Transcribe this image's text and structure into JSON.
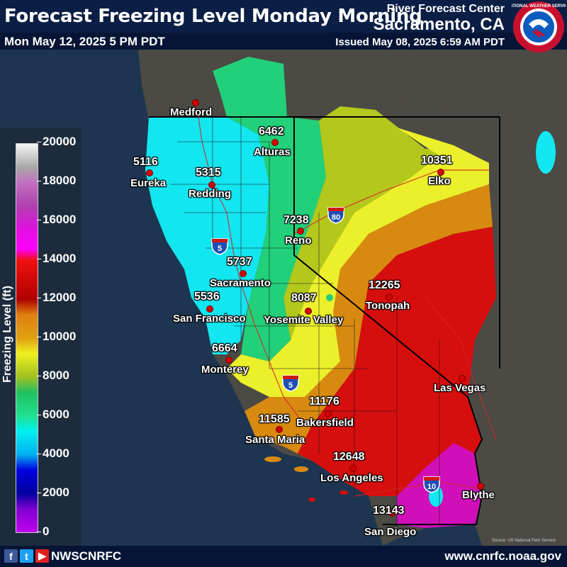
{
  "header": {
    "title": "Forecast Freezing Level Monday Morning",
    "valid_time": "Mon May 12, 2025 5 PM PDT",
    "agency_line": "River Forecast Center",
    "office": "Sacramento, CA",
    "issued": "Issued May 08, 2025 6:59 AM PDT",
    "logo_text": "NATIONAL WEATHER SERVICE"
  },
  "legend": {
    "title": "Freezing Level (ft)",
    "ticks": [
      "20000",
      "18000",
      "16000",
      "14000",
      "12000",
      "10000",
      "8000",
      "6000",
      "4000",
      "2000",
      "0"
    ]
  },
  "cities": [
    {
      "name": "Medford",
      "value": ""
    },
    {
      "name": "Alturas",
      "value": "6462"
    },
    {
      "name": "Eureka",
      "value": "5116"
    },
    {
      "name": "Redding",
      "value": "5315"
    },
    {
      "name": "Elko",
      "value": "10351"
    },
    {
      "name": "Reno",
      "value": "7238"
    },
    {
      "name": "Sacramento",
      "value": "5737"
    },
    {
      "name": "San Francisco",
      "value": "5536"
    },
    {
      "name": "Yosemite Valley",
      "value": "8087"
    },
    {
      "name": "Tonopah",
      "value": "12265"
    },
    {
      "name": "Monterey",
      "value": "6664"
    },
    {
      "name": "Las Vegas",
      "value": ""
    },
    {
      "name": "Bakersfield",
      "value": "11176"
    },
    {
      "name": "Santa Maria",
      "value": "11585"
    },
    {
      "name": "Los Angeles",
      "value": "12648"
    },
    {
      "name": "Blythe",
      "value": ""
    },
    {
      "name": "San Diego",
      "value": "13143"
    }
  ],
  "interstates": [
    "80",
    "5",
    "5",
    "10"
  ],
  "source": "Source: US National Park Service",
  "footer": {
    "social_icons": [
      "facebook-icon",
      "twitter-icon",
      "youtube-icon"
    ],
    "handle": "NWSCNRFC",
    "website": "www.cnrfc.noaa.gov"
  },
  "colors": {
    "header_bg": "#0b1e45",
    "ocean": "#1d3550",
    "land_outside": "#4a4a44"
  }
}
